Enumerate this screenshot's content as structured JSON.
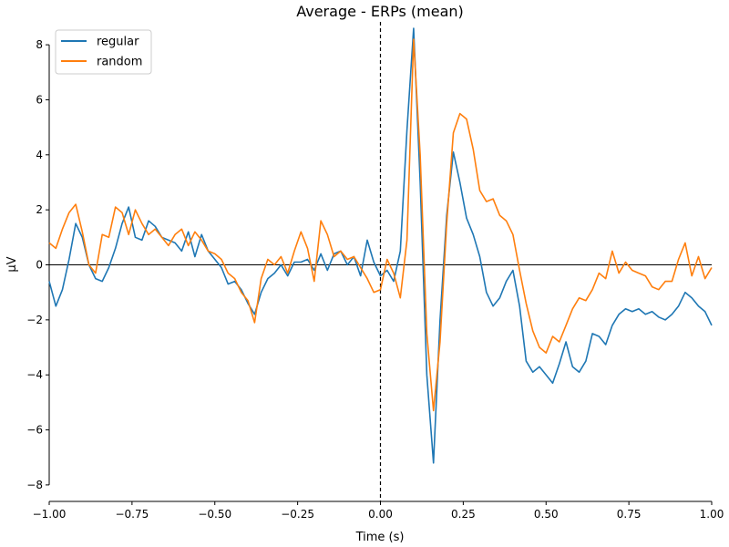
{
  "chart_data": {
    "type": "line",
    "title": "Average - ERPs (mean)",
    "xlabel": "Time (s)",
    "ylabel": "µV",
    "xlim": [
      -1.0,
      1.0
    ],
    "ylim": [
      -8.6,
      8.7
    ],
    "xticks": [
      -1.0,
      -0.75,
      -0.5,
      -0.25,
      0.0,
      0.25,
      0.5,
      0.75,
      1.0
    ],
    "xtick_labels": [
      "−1.00",
      "−0.75",
      "−0.50",
      "−0.25",
      "0.00",
      "0.25",
      "0.50",
      "0.75",
      "1.00"
    ],
    "yticks": [
      -8,
      -6,
      -4,
      -2,
      0,
      2,
      4,
      6,
      8
    ],
    "ytick_labels": [
      "−8",
      "−6",
      "−4",
      "−2",
      "0",
      "2",
      "4",
      "6",
      "8"
    ],
    "grid": false,
    "legend_position": "top-left",
    "zero_line": true,
    "event_line_x": 0.0,
    "x": [
      -1.0,
      -0.98,
      -0.96,
      -0.94,
      -0.92,
      -0.9,
      -0.88,
      -0.86,
      -0.84,
      -0.82,
      -0.8,
      -0.78,
      -0.76,
      -0.74,
      -0.72,
      -0.7,
      -0.68,
      -0.66,
      -0.64,
      -0.62,
      -0.6,
      -0.58,
      -0.56,
      -0.54,
      -0.52,
      -0.5,
      -0.48,
      -0.46,
      -0.44,
      -0.42,
      -0.4,
      -0.38,
      -0.36,
      -0.34,
      -0.32,
      -0.3,
      -0.28,
      -0.26,
      -0.24,
      -0.22,
      -0.2,
      -0.18,
      -0.16,
      -0.14,
      -0.12,
      -0.1,
      -0.08,
      -0.06,
      -0.04,
      -0.02,
      0.0,
      0.02,
      0.04,
      0.06,
      0.08,
      0.1,
      0.12,
      0.14,
      0.16,
      0.18,
      0.2,
      0.22,
      0.24,
      0.26,
      0.28,
      0.3,
      0.32,
      0.34,
      0.36,
      0.38,
      0.4,
      0.42,
      0.44,
      0.46,
      0.48,
      0.5,
      0.52,
      0.54,
      0.56,
      0.58,
      0.6,
      0.62,
      0.64,
      0.66,
      0.68,
      0.7,
      0.72,
      0.74,
      0.76,
      0.78,
      0.8,
      0.82,
      0.84,
      0.86,
      0.88,
      0.9,
      0.92,
      0.94,
      0.96,
      0.98,
      1.0
    ],
    "series": [
      {
        "name": "regular",
        "color": "#1f77b4",
        "values": [
          -0.6,
          -1.5,
          -0.9,
          0.2,
          1.5,
          1.0,
          0.0,
          -0.5,
          -0.6,
          -0.1,
          0.6,
          1.5,
          2.1,
          1.0,
          0.9,
          1.6,
          1.4,
          1.0,
          0.9,
          0.8,
          0.5,
          1.2,
          0.3,
          1.1,
          0.5,
          0.2,
          -0.1,
          -0.7,
          -0.6,
          -0.9,
          -1.4,
          -1.8,
          -1.0,
          -0.5,
          -0.3,
          0.0,
          -0.4,
          0.1,
          0.1,
          0.2,
          -0.2,
          0.4,
          -0.2,
          0.4,
          0.5,
          0.0,
          0.3,
          -0.4,
          0.9,
          0.1,
          -0.4,
          -0.2,
          -0.6,
          0.5,
          4.9,
          8.6,
          3.0,
          -4.0,
          -7.2,
          -2.0,
          1.8,
          4.1,
          3.0,
          1.7,
          1.1,
          0.3,
          -1.0,
          -1.5,
          -1.2,
          -0.6,
          -0.2,
          -1.5,
          -3.5,
          -3.9,
          -3.7,
          -4.0,
          -4.3,
          -3.6,
          -2.8,
          -3.7,
          -3.9,
          -3.5,
          -2.5,
          -2.6,
          -2.9,
          -2.2,
          -1.8,
          -1.6,
          -1.7,
          -1.6,
          -1.8,
          -1.7,
          -1.9,
          -2.0,
          -1.8,
          -1.5,
          -1.0,
          -1.2,
          -1.5,
          -1.7,
          -2.2
        ]
      },
      {
        "name": "random",
        "color": "#ff7f0e",
        "values": [
          0.8,
          0.6,
          1.3,
          1.9,
          2.2,
          1.2,
          0.0,
          -0.3,
          1.1,
          1.0,
          2.1,
          1.9,
          1.1,
          2.0,
          1.5,
          1.1,
          1.3,
          1.0,
          0.7,
          1.1,
          1.3,
          0.7,
          1.2,
          0.9,
          0.5,
          0.4,
          0.2,
          -0.3,
          -0.5,
          -1.0,
          -1.3,
          -2.1,
          -0.5,
          0.2,
          0.0,
          0.3,
          -0.3,
          0.5,
          1.2,
          0.6,
          -0.6,
          1.6,
          1.1,
          0.3,
          0.5,
          0.2,
          0.3,
          -0.1,
          -0.5,
          -1.0,
          -0.9,
          0.2,
          -0.3,
          -1.2,
          0.9,
          8.2,
          4.0,
          -2.5,
          -5.3,
          -2.8,
          1.5,
          4.8,
          5.5,
          5.3,
          4.2,
          2.7,
          2.3,
          2.4,
          1.8,
          1.6,
          1.1,
          -0.2,
          -1.4,
          -2.4,
          -3.0,
          -3.2,
          -2.6,
          -2.8,
          -2.2,
          -1.6,
          -1.2,
          -1.3,
          -0.9,
          -0.3,
          -0.5,
          0.5,
          -0.3,
          0.1,
          -0.2,
          -0.3,
          -0.4,
          -0.8,
          -0.9,
          -0.6,
          -0.6,
          0.2,
          0.8,
          -0.4,
          0.3,
          -0.5,
          -0.1
        ]
      }
    ]
  }
}
